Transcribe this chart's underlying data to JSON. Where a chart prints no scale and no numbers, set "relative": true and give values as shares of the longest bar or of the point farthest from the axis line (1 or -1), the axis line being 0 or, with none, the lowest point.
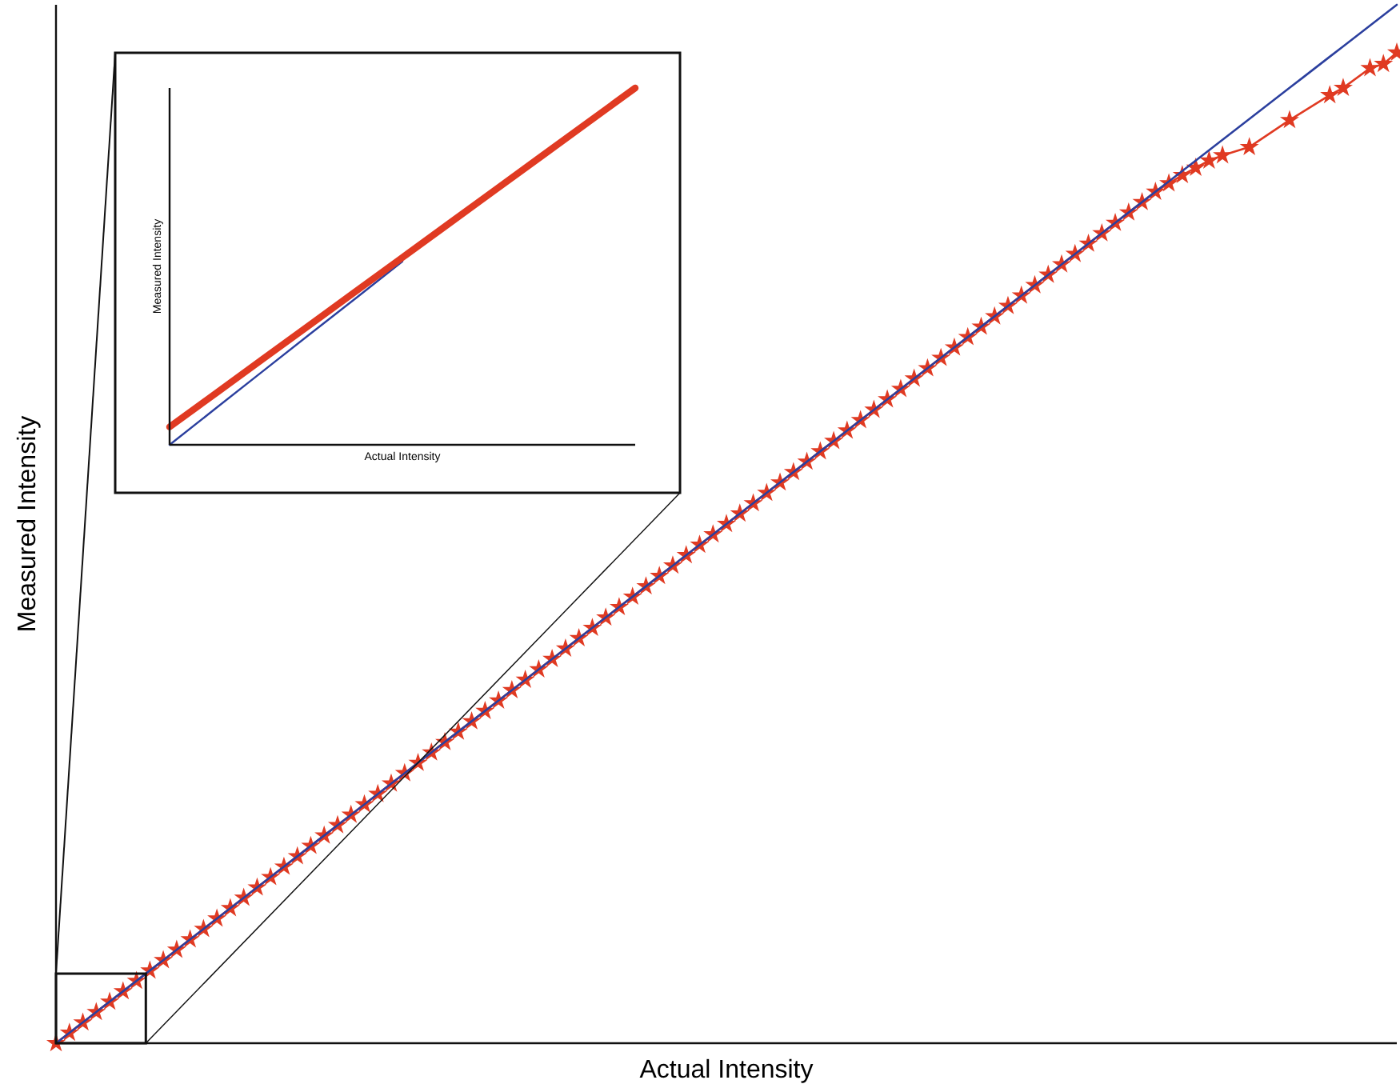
{
  "chart_data": [
    {
      "type": "line",
      "xlabel": "Actual Intensity",
      "ylabel": "Measured Intensity",
      "relative": true,
      "categories": [
        null,
        null,
        null,
        null,
        null,
        null,
        null,
        null,
        null,
        null,
        null,
        null,
        null,
        null,
        null,
        null,
        null,
        null,
        null,
        null,
        null,
        null,
        null,
        null,
        null,
        null,
        null,
        null,
        null,
        null,
        null,
        null,
        null,
        null,
        null,
        null,
        null,
        null,
        null,
        null,
        null,
        null,
        null,
        null,
        null,
        null,
        null,
        null,
        null,
        null,
        null,
        null,
        null,
        null,
        null,
        null,
        null,
        null,
        null,
        null,
        null,
        null,
        null,
        null,
        null,
        null,
        null,
        null,
        null,
        null,
        null,
        null,
        null,
        null,
        null,
        null,
        null,
        null,
        null,
        null,
        null,
        null,
        null,
        null,
        null,
        null,
        null,
        null,
        null,
        null,
        null,
        null,
        null,
        null,
        null,
        null,
        null,
        null,
        null,
        null,
        null
      ],
      "series": [
        {
          "marker": "star",
          "color": "#e03a22",
          "values": [
            0,
            0.01,
            0.02,
            0.03,
            0.04,
            0.05,
            0.06,
            0.07,
            0.08,
            0.09,
            0.1,
            0.11,
            0.12,
            0.13,
            0.14,
            0.15,
            0.16,
            0.17,
            0.18,
            0.19,
            0.2,
            0.21,
            0.22,
            0.23,
            0.24,
            0.25,
            0.26,
            0.27,
            0.28,
            0.29,
            0.3,
            0.31,
            0.32,
            0.33,
            0.34,
            0.35,
            0.36,
            0.37,
            0.38,
            0.39,
            0.4,
            0.41,
            0.42,
            0.43,
            0.44,
            0.45,
            0.46,
            0.47,
            0.48,
            0.49,
            0.5,
            0.51,
            0.52,
            0.53,
            0.54,
            0.55,
            0.56,
            0.57,
            0.58,
            0.59,
            0.6,
            0.61,
            0.62,
            0.63,
            0.64,
            0.65,
            0.66,
            0.67,
            0.68,
            0.69,
            0.7,
            0.71,
            0.72,
            0.73,
            0.74,
            0.75,
            0.76,
            0.77,
            0.78,
            0.79,
            0.8,
            0.81,
            0.82,
            0.828,
            0.836,
            0.843,
            0.85,
            0.855,
            null,
            0.863,
            null,
            null,
            0.889,
            null,
            null,
            0.913,
            0.92,
            null,
            0.939,
            0.943,
            0.954
          ]
        },
        {
          "color": "#2b3f9e",
          "values": [
            0,
            0.01,
            0.02,
            0.03,
            0.04,
            0.05,
            0.06,
            0.07,
            0.08,
            0.09,
            0.1,
            0.11,
            0.12,
            0.13,
            0.14,
            0.15,
            0.16,
            0.17,
            0.18,
            0.19,
            0.2,
            0.21,
            0.22,
            0.23,
            0.24,
            0.25,
            0.26,
            0.27,
            0.28,
            0.29,
            0.3,
            0.31,
            0.32,
            0.33,
            0.34,
            0.35,
            0.36,
            0.37,
            0.38,
            0.39,
            0.4,
            0.41,
            0.42,
            0.43,
            0.44,
            0.45,
            0.46,
            0.47,
            0.48,
            0.49,
            0.5,
            0.51,
            0.52,
            0.53,
            0.54,
            0.55,
            0.56,
            0.57,
            0.58,
            0.59,
            0.6,
            0.61,
            0.62,
            0.63,
            0.64,
            0.65,
            0.66,
            0.67,
            0.68,
            0.69,
            0.7,
            0.71,
            0.72,
            0.73,
            0.74,
            0.75,
            0.76,
            0.77,
            0.78,
            0.79,
            0.8,
            0.81,
            0.82,
            0.83,
            0.84,
            0.85,
            0.86,
            0.87,
            0.88,
            0.89,
            0.9,
            0.91,
            0.92,
            0.93,
            0.94,
            0.95,
            0.96,
            0.97,
            0.98,
            0.99,
            1
          ]
        }
      ]
    },
    {
      "type": "line",
      "xlabel": "Actual Intensity",
      "ylabel": "Measured Intensity",
      "relative": true,
      "categories": [
        null,
        null,
        null,
        null,
        null,
        null,
        null,
        null,
        null,
        null,
        null
      ],
      "series": [
        {
          "color": "#2b3f9e",
          "values": [
            0,
            0.103,
            0.206,
            0.309,
            0.411,
            0.514,
            null,
            null,
            null,
            null,
            null
          ]
        },
        {
          "color": "#e03a22",
          "values": [
            0.05,
            0.145,
            0.24,
            0.335,
            0.43,
            0.525,
            0.62,
            0.715,
            0.81,
            0.905,
            1
          ]
        }
      ]
    }
  ]
}
